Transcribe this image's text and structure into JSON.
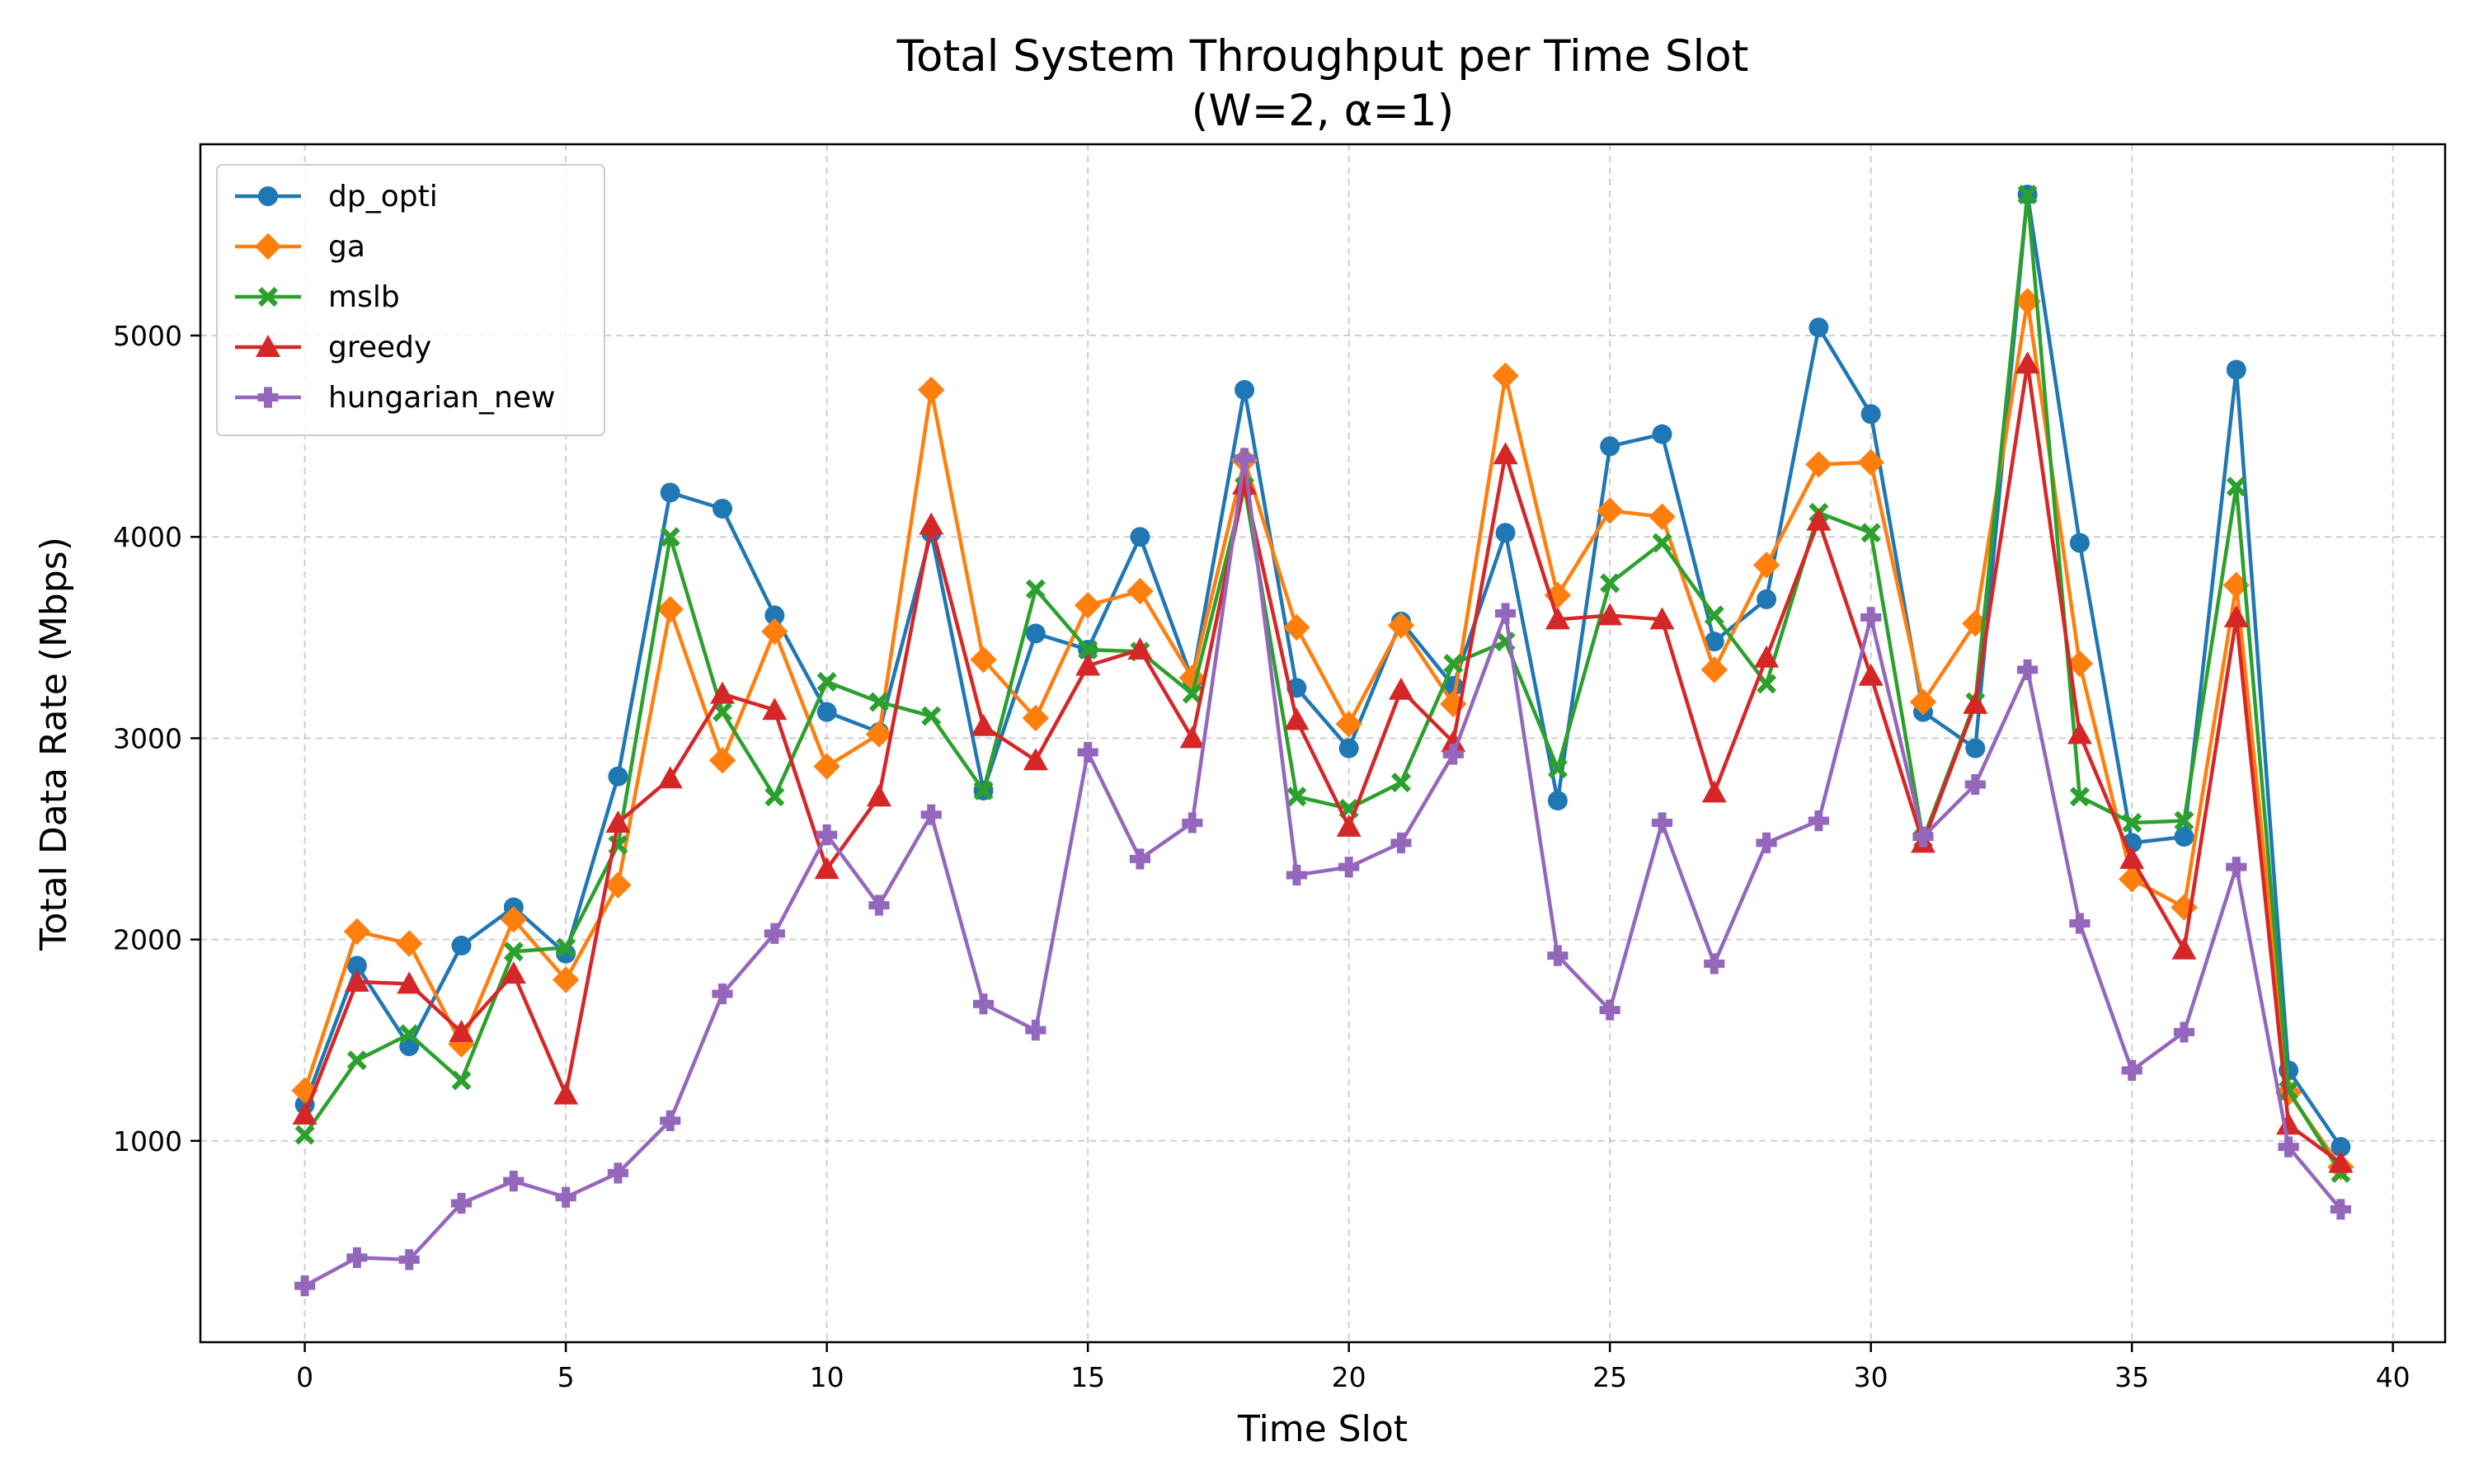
{
  "chart_data": {
    "type": "line",
    "title": "Total System Throughput per Time Slot",
    "subtitle": "(W=2, α=1)",
    "xlabel": "Time Slot",
    "ylabel": "Total Data Rate (Mbps)",
    "xlim": [
      -2,
      41
    ],
    "ylim": [
      0,
      5950
    ],
    "xticks": [
      0,
      5,
      10,
      15,
      20,
      25,
      30,
      35,
      40
    ],
    "yticks": [
      1000,
      2000,
      3000,
      4000,
      5000
    ],
    "grid": true,
    "legend_position": "top-left",
    "x": [
      0,
      1,
      2,
      3,
      4,
      5,
      6,
      7,
      8,
      9,
      10,
      11,
      12,
      13,
      14,
      15,
      16,
      17,
      18,
      19,
      20,
      21,
      22,
      23,
      24,
      25,
      26,
      27,
      28,
      29,
      30,
      31,
      32,
      33,
      34,
      35,
      36,
      37,
      38,
      39
    ],
    "series": [
      {
        "name": "dp_opti",
        "color": "#1f77b4",
        "marker": "circle",
        "values": [
          1180,
          1870,
          1470,
          1970,
          2160,
          1930,
          2810,
          4220,
          4140,
          3610,
          3130,
          3030,
          4020,
          2740,
          3520,
          3440,
          4000,
          3290,
          4730,
          3250,
          2950,
          3580,
          3260,
          4020,
          2690,
          4450,
          4510,
          3480,
          3690,
          5040,
          4610,
          3130,
          2950,
          5700,
          3970,
          2480,
          2510,
          4830,
          1350,
          970
        ]
      },
      {
        "name": "ga",
        "color": "#ff7f0e",
        "marker": "diamond",
        "values": [
          1250,
          2040,
          1980,
          1480,
          2100,
          1800,
          2270,
          3640,
          2890,
          3530,
          2860,
          3020,
          4730,
          3390,
          3100,
          3660,
          3730,
          3300,
          4380,
          3550,
          3070,
          3560,
          3170,
          4800,
          3710,
          4130,
          4100,
          3340,
          3860,
          4360,
          4370,
          3180,
          3570,
          5170,
          3370,
          2300,
          2160,
          3760,
          1240,
          870
        ]
      },
      {
        "name": "mslb",
        "color": "#2ca02c",
        "marker": "x",
        "values": [
          1030,
          1400,
          1530,
          1300,
          1940,
          1960,
          2470,
          4000,
          3130,
          2710,
          3280,
          3180,
          3110,
          2740,
          3740,
          3440,
          3430,
          3220,
          4250,
          2710,
          2650,
          2780,
          3370,
          3480,
          2850,
          3770,
          3970,
          3610,
          3270,
          4120,
          4020,
          2500,
          3180,
          5700,
          2710,
          2580,
          2590,
          4250,
          1250,
          840
        ]
      },
      {
        "name": "greedy",
        "color": "#d62728",
        "marker": "triangle",
        "values": [
          1130,
          1790,
          1780,
          1540,
          1830,
          1230,
          2580,
          2800,
          3220,
          3140,
          2350,
          2710,
          4060,
          3060,
          2890,
          3360,
          3440,
          3000,
          4260,
          3090,
          2560,
          3240,
          2980,
          4410,
          3590,
          3610,
          3590,
          2730,
          3400,
          4080,
          3310,
          2480,
          3170,
          4860,
          3020,
          2400,
          1950,
          3600,
          1080,
          890
        ]
      },
      {
        "name": "hungarian_new",
        "color": "#9467bd",
        "marker": "plus",
        "values": [
          280,
          420,
          410,
          690,
          800,
          720,
          840,
          1100,
          1730,
          2030,
          2520,
          2170,
          2620,
          1680,
          1550,
          2930,
          2400,
          2580,
          4390,
          2320,
          2360,
          2480,
          2920,
          3620,
          1920,
          1650,
          2580,
          1880,
          2480,
          2590,
          3600,
          2510,
          2770,
          3340,
          2080,
          1350,
          1540,
          2360,
          970,
          660
        ]
      }
    ]
  }
}
